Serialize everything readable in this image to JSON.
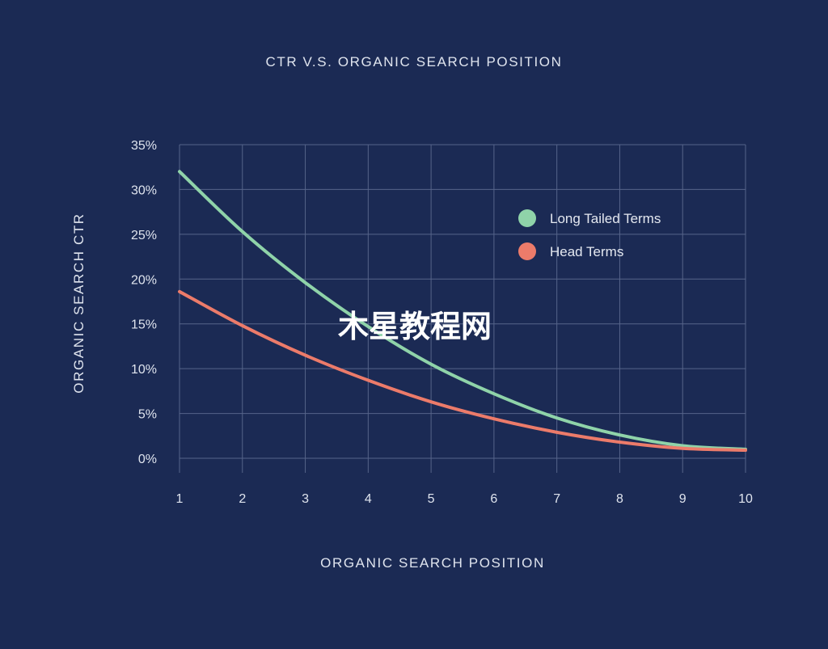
{
  "chart_data": {
    "type": "line",
    "title": "CTR V.S. ORGANIC SEARCH POSITION",
    "xlabel": "ORGANIC SEARCH POSITION",
    "ylabel": "ORGANIC SEARCH CTR",
    "x": [
      1,
      2,
      3,
      4,
      5,
      6,
      7,
      8,
      9,
      10
    ],
    "xlim": [
      1,
      10
    ],
    "ylim": [
      0,
      35
    ],
    "yticks": [
      0,
      5,
      10,
      15,
      20,
      25,
      30,
      35
    ],
    "ytick_labels": [
      "0%",
      "5%",
      "10%",
      "15%",
      "20%",
      "25%",
      "30%",
      "35%"
    ],
    "xtick_labels": [
      "1",
      "2",
      "3",
      "4",
      "5",
      "6",
      "7",
      "8",
      "9",
      "10"
    ],
    "grid": true,
    "legend_position": "top-right",
    "series": [
      {
        "name": "Long Tailed Terms",
        "color": "#8fd3a9",
        "values": [
          32,
          25.3,
          19.6,
          14.7,
          10.5,
          7.2,
          4.5,
          2.6,
          1.4,
          1.0
        ]
      },
      {
        "name": "Head Terms",
        "color": "#ec7b6a",
        "values": [
          18.6,
          14.8,
          11.5,
          8.7,
          6.3,
          4.4,
          2.9,
          1.8,
          1.1,
          0.9
        ]
      }
    ]
  },
  "watermark": "木星教程网"
}
